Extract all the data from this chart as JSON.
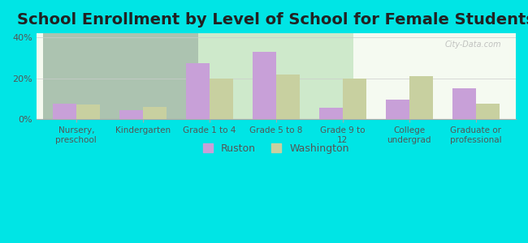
{
  "title": "School Enrollment by Level of School for Female Students",
  "categories": [
    "Nursery,\npreschool",
    "Kindergarten",
    "Grade 1 to 4",
    "Grade 5 to 8",
    "Grade 9 to\n12",
    "College\nundergrad",
    "Graduate or\nprofessional"
  ],
  "ruston": [
    7.5,
    4.5,
    27.5,
    33.0,
    5.5,
    9.5,
    15.0
  ],
  "washington": [
    7.0,
    6.0,
    20.0,
    22.0,
    20.0,
    21.0,
    7.5
  ],
  "ruston_color": "#c8a0d8",
  "washington_color": "#c8d0a0",
  "background_color": "#00e5e5",
  "plot_bg_start": "#f0f8e8",
  "plot_bg_end": "#ffffff",
  "yticks": [
    0,
    20,
    40
  ],
  "ytick_labels": [
    "0%",
    "20%",
    "40%"
  ],
  "ylim": [
    0,
    42
  ],
  "title_fontsize": 14,
  "legend_labels": [
    "Ruston",
    "Washington"
  ],
  "watermark": "City-Data.com"
}
